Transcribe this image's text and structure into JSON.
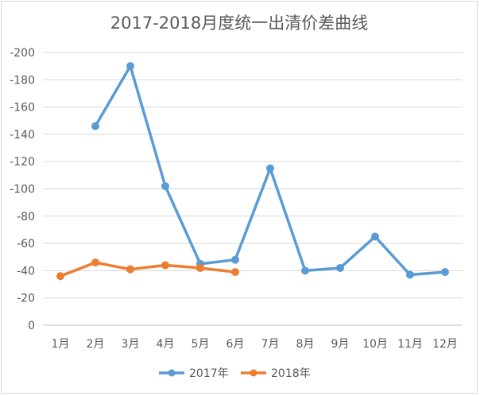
{
  "chart_data": {
    "type": "line",
    "title": "2017-2018月度统一出清价差曲线",
    "categories": [
      "1月",
      "2月",
      "3月",
      "4月",
      "5月",
      "6月",
      "7月",
      "8月",
      "9月",
      "10月",
      "11月",
      "12月"
    ],
    "y_ticks": [
      "0",
      "-20",
      "-40",
      "-60",
      "-80",
      "-100",
      "-120",
      "-140",
      "-160",
      "-180",
      "-200"
    ],
    "ylim": [
      0,
      -200
    ],
    "y_reversed": true,
    "grid": true,
    "legend_position": "bottom",
    "series": [
      {
        "name": "2017年",
        "color": "#5b9bd5",
        "values": [
          null,
          -146,
          -190,
          -102,
          -45,
          -48,
          -115,
          -40,
          -42,
          -65,
          -37,
          -39
        ]
      },
      {
        "name": "2018年",
        "color": "#ed7d31",
        "values": [
          -36,
          -46,
          -41,
          -44,
          -42,
          -39,
          null,
          null,
          null,
          null,
          null,
          null
        ]
      }
    ]
  }
}
